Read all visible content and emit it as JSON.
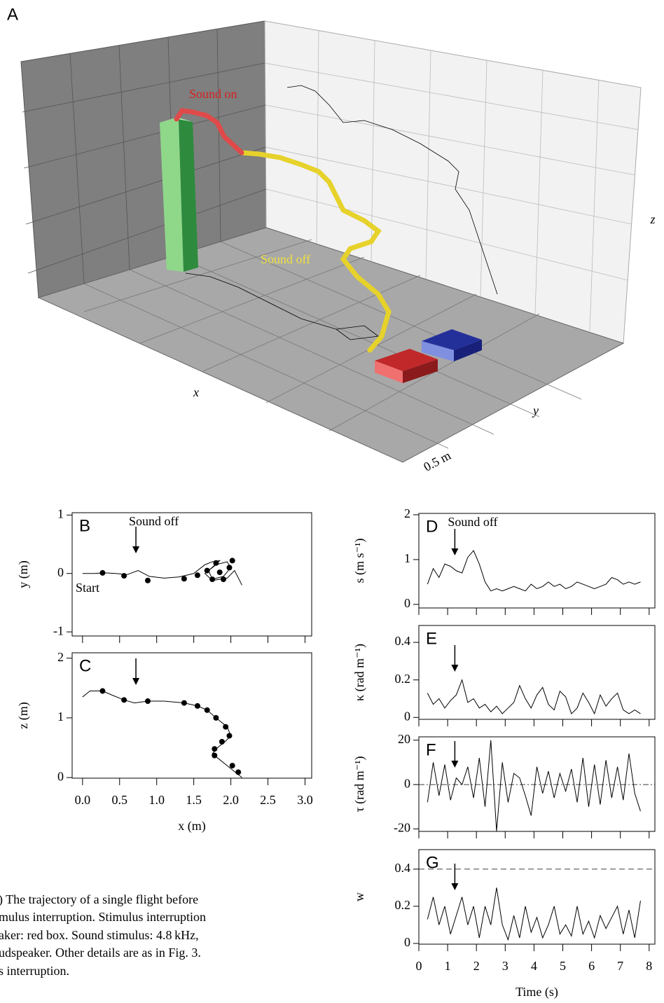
{
  "panel_a": {
    "label": "A",
    "sound_on": "Sound on",
    "sound_off": "Sound off",
    "x_label": "x",
    "y_label": "y",
    "z_label": "z",
    "scale_label": "0.5 m"
  },
  "caption": {
    "lines": [
      ") The trajectory of a single flight before",
      "mulus interruption. Stimulus interruption",
      "aker: red box. Sound stimulus: 4.8 kHz,",
      "udspeaker. Other details are as in Fig. 3.",
      "s interruption."
    ]
  },
  "chart_data": [
    {
      "type": "line",
      "panel": "B",
      "ylabel": "y (m)",
      "annotation": "Sound off",
      "arrow_x": 0.72,
      "start_label": "Start",
      "xlim": [
        -0.14,
        3.09
      ],
      "ylim": [
        -1.07,
        1.04
      ],
      "xticks": [
        0,
        0.5,
        1,
        1.5,
        2,
        2.5,
        3
      ],
      "yticks": [
        -1,
        0,
        1
      ],
      "series": [
        {
          "x": [
            0.0,
            0.15,
            0.3,
            0.45,
            0.6,
            0.75,
            0.9,
            1.1,
            1.3,
            1.5,
            1.65,
            1.75,
            1.85,
            1.7,
            1.75,
            1.9,
            2.0,
            1.95,
            1.8,
            1.65,
            1.75,
            1.95,
            2.05,
            2.15
          ],
          "values": [
            0,
            0,
            0.01,
            0,
            -0.02,
            0.05,
            -0.05,
            -0.08,
            -0.06,
            0.0,
            0.15,
            0.2,
            0.22,
            0.05,
            -0.1,
            -0.05,
            0.1,
            0.2,
            0.15,
            0.0,
            -0.12,
            -0.08,
            0.05,
            -0.2
          ],
          "color": "#000000"
        },
        {
          "marker": "circle",
          "x": [
            0.27,
            0.56,
            0.88,
            1.37,
            1.55,
            1.68,
            1.75,
            1.8,
            1.85,
            1.9,
            1.98,
            2.02
          ],
          "values": [
            0.01,
            -0.04,
            -0.12,
            -0.09,
            -0.03,
            0.05,
            -0.1,
            0.18,
            0.02,
            -0.1,
            0.1,
            0.22
          ],
          "color": "#000000"
        }
      ]
    },
    {
      "type": "line",
      "panel": "C",
      "ylabel": "z (m)",
      "xlabel": "x (m)",
      "arrow_x": 0.72,
      "xlim": [
        -0.14,
        3.09
      ],
      "ylim": [
        -0.01,
        2.09
      ],
      "xticks": [
        {
          "value": 0,
          "label": "0.0"
        },
        0.5,
        {
          "value": 1,
          "label": "1.0"
        },
        1.5,
        {
          "value": 2,
          "label": "2.0"
        },
        2.5,
        {
          "value": 3,
          "label": "3.0"
        }
      ],
      "yticks": [
        0,
        1,
        2
      ],
      "series": [
        {
          "x": [
            0.0,
            0.1,
            0.27,
            0.4,
            0.56,
            0.7,
            0.88,
            1.1,
            1.37,
            1.55,
            1.68,
            1.8,
            1.95,
            2.0,
            1.92,
            1.82,
            1.75,
            1.85,
            1.95,
            2.05,
            2.15
          ],
          "values": [
            1.35,
            1.45,
            1.45,
            1.38,
            1.3,
            1.25,
            1.28,
            1.28,
            1.25,
            1.2,
            1.13,
            1.0,
            0.85,
            0.7,
            0.6,
            0.5,
            0.4,
            0.3,
            0.2,
            0.1,
            0.0
          ],
          "color": "#000000"
        },
        {
          "marker": "circle",
          "x": [
            0.27,
            0.56,
            0.88,
            1.37,
            1.55,
            1.68,
            1.8,
            1.93,
            1.98,
            1.88,
            1.78,
            1.78,
            2.02,
            2.1
          ],
          "values": [
            1.45,
            1.3,
            1.28,
            1.25,
            1.2,
            1.13,
            1.0,
            0.85,
            0.7,
            0.6,
            0.48,
            0.37,
            0.2,
            0.09
          ],
          "color": "#000000"
        }
      ]
    },
    {
      "type": "line",
      "panel": "D",
      "ylabel": "s (m s⁻¹)",
      "annotation": "Sound off",
      "arrow_x": 1.25,
      "xlim": [
        0,
        8.2
      ],
      "ylim": [
        -0.08,
        2.03
      ],
      "xticks": [
        0,
        1,
        2,
        3,
        4,
        5,
        6,
        7,
        8
      ],
      "yticks": [
        0,
        1,
        2
      ],
      "series": [
        {
          "x": [
            0.3,
            0.5,
            0.7,
            0.9,
            1.1,
            1.3,
            1.5,
            1.7,
            1.9,
            2.1,
            2.3,
            2.5,
            2.7,
            2.9,
            3.1,
            3.3,
            3.5,
            3.7,
            3.9,
            4.1,
            4.3,
            4.5,
            4.7,
            4.9,
            5.1,
            5.3,
            5.5,
            5.7,
            5.9,
            6.1,
            6.3,
            6.5,
            6.7,
            6.9,
            7.1,
            7.3,
            7.5,
            7.7
          ],
          "values": [
            0.45,
            0.8,
            0.6,
            0.9,
            0.85,
            0.75,
            0.7,
            1.05,
            1.2,
            0.9,
            0.5,
            0.3,
            0.35,
            0.3,
            0.35,
            0.4,
            0.35,
            0.3,
            0.45,
            0.35,
            0.4,
            0.5,
            0.4,
            0.45,
            0.35,
            0.4,
            0.5,
            0.45,
            0.4,
            0.35,
            0.4,
            0.45,
            0.6,
            0.55,
            0.45,
            0.5,
            0.45,
            0.5
          ],
          "color": "#000000"
        }
      ]
    },
    {
      "type": "line",
      "panel": "E",
      "ylabel": "κ (rad m⁻¹)",
      "arrow_x": 1.25,
      "xlim": [
        0,
        8.2
      ],
      "ylim": [
        -0.01,
        0.49
      ],
      "xticks": [
        0,
        1,
        2,
        3,
        4,
        5,
        6,
        7,
        8
      ],
      "yticks": [
        0,
        0.2,
        0.4
      ],
      "series": [
        {
          "x": [
            0.3,
            0.5,
            0.7,
            0.9,
            1.1,
            1.3,
            1.5,
            1.7,
            1.9,
            2.1,
            2.3,
            2.5,
            2.7,
            2.9,
            3.1,
            3.3,
            3.5,
            3.7,
            3.9,
            4.1,
            4.3,
            4.5,
            4.7,
            4.9,
            5.1,
            5.3,
            5.5,
            5.7,
            5.9,
            6.1,
            6.3,
            6.5,
            6.7,
            6.9,
            7.1,
            7.3,
            7.5,
            7.7
          ],
          "values": [
            0.13,
            0.07,
            0.1,
            0.05,
            0.09,
            0.12,
            0.2,
            0.08,
            0.1,
            0.05,
            0.07,
            0.03,
            0.06,
            0.02,
            0.05,
            0.08,
            0.17,
            0.1,
            0.05,
            0.12,
            0.16,
            0.07,
            0.04,
            0.14,
            0.11,
            0.02,
            0.05,
            0.13,
            0.08,
            0.02,
            0.12,
            0.06,
            0.1,
            0.13,
            0.04,
            0.02,
            0.04,
            0.02
          ],
          "color": "#000000"
        }
      ]
    },
    {
      "type": "line",
      "panel": "F",
      "ylabel": "τ (rad m⁻¹)",
      "arrow_x": 1.25,
      "hline": {
        "y": 0,
        "style": "dashdot"
      },
      "xlim": [
        0,
        8.2
      ],
      "ylim": [
        -21.1,
        21.5
      ],
      "xticks": [
        0,
        1,
        2,
        3,
        4,
        5,
        6,
        7,
        8
      ],
      "yticks": [
        -20,
        0,
        20
      ],
      "series": [
        {
          "x": [
            0.3,
            0.5,
            0.7,
            0.9,
            1.1,
            1.3,
            1.5,
            1.7,
            1.9,
            2.1,
            2.3,
            2.5,
            2.7,
            2.9,
            3.1,
            3.3,
            3.5,
            3.7,
            3.9,
            4.1,
            4.3,
            4.5,
            4.7,
            4.9,
            5.1,
            5.3,
            5.5,
            5.7,
            5.9,
            6.1,
            6.3,
            6.5,
            6.7,
            6.9,
            7.1,
            7.3,
            7.5,
            7.7
          ],
          "values": [
            -8,
            10,
            -5,
            9,
            -7,
            3,
            0,
            8,
            -6,
            12,
            -10,
            20,
            -21,
            10,
            -8,
            5,
            3,
            -5,
            -14,
            8,
            -4,
            6,
            -6,
            5,
            -3,
            7,
            -8,
            12,
            -10,
            9,
            -9,
            11,
            -6,
            8,
            -7,
            14,
            -4,
            -12
          ],
          "color": "#000000"
        }
      ]
    },
    {
      "type": "line",
      "panel": "G",
      "ylabel": "w",
      "xlabel": "Time (s)",
      "arrow_x": 1.25,
      "hline": {
        "y": 0.4,
        "style": "dashed"
      },
      "xlim": [
        0,
        8.2
      ],
      "ylim": [
        -0.004,
        0.505
      ],
      "xticks": [
        0,
        1,
        2,
        3,
        4,
        5,
        6,
        7,
        8
      ],
      "yticks": [
        0,
        0.2,
        0.4
      ],
      "series": [
        {
          "x": [
            0.3,
            0.5,
            0.7,
            0.9,
            1.1,
            1.3,
            1.5,
            1.7,
            1.9,
            2.1,
            2.3,
            2.5,
            2.7,
            2.9,
            3.1,
            3.3,
            3.5,
            3.7,
            3.9,
            4.1,
            4.3,
            4.5,
            4.7,
            4.9,
            5.1,
            5.3,
            5.5,
            5.7,
            5.9,
            6.1,
            6.3,
            6.5,
            6.7,
            6.9,
            7.1,
            7.3,
            7.5,
            7.7
          ],
          "values": [
            0.13,
            0.25,
            0.1,
            0.2,
            0.05,
            0.15,
            0.25,
            0.1,
            0.2,
            0.03,
            0.2,
            0.1,
            0.3,
            0.1,
            0.02,
            0.15,
            0.03,
            0.2,
            0.06,
            0.14,
            0.03,
            0.1,
            0.2,
            0.05,
            0.1,
            0.04,
            0.2,
            0.05,
            0.12,
            0.03,
            0.15,
            0.08,
            0.14,
            0.2,
            0.05,
            0.18,
            0.03,
            0.23
          ],
          "color": "#000000"
        }
      ]
    }
  ]
}
